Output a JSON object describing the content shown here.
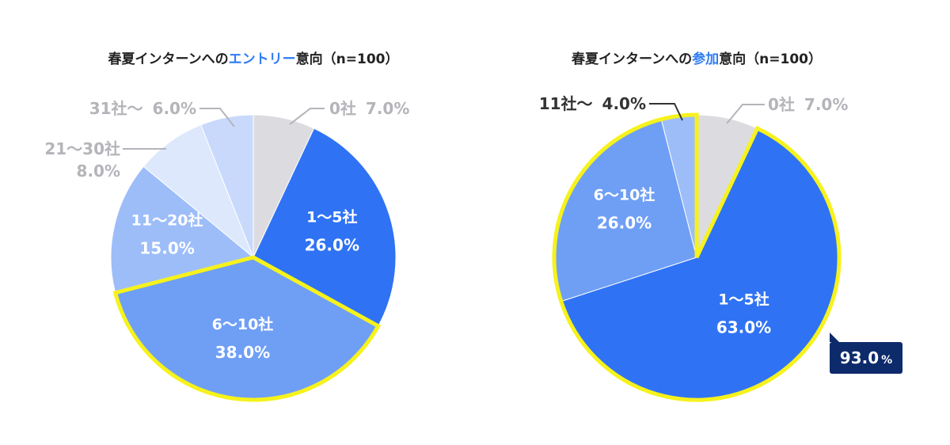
{
  "chart_data": [
    {
      "type": "pie",
      "title_parts": [
        "春夏インターンへの",
        "エントリー",
        "意向（n=100）"
      ],
      "slices": [
        {
          "name": "0社",
          "value": 7.0,
          "label": "7.0%",
          "color": "#dcdce0"
        },
        {
          "name": "1〜5社",
          "value": 26.0,
          "label": "26.0%",
          "color": "#2f73f4"
        },
        {
          "name": "6〜10社",
          "value": 38.0,
          "label": "38.0%",
          "color": "#6f9ff5"
        },
        {
          "name": "11〜20社",
          "value": 15.0,
          "label": "15.0%",
          "color": "#9dbdf9"
        },
        {
          "name": "21〜30社",
          "value": 8.0,
          "label": "8.0%",
          "color": "#dde8fd"
        },
        {
          "name": "31社〜",
          "value": 6.0,
          "label": "6.0%",
          "color": "#c8d9fc"
        }
      ],
      "highlight": [
        "6〜10社"
      ],
      "colors": {
        "highlight_outline": "#f6f21c",
        "accent": "#2f7cf3"
      }
    },
    {
      "type": "pie",
      "title_parts": [
        "春夏インターンへの",
        "参加",
        "意向（n=100）"
      ],
      "slices": [
        {
          "name": "0社",
          "value": 7.0,
          "label": "7.0%",
          "color": "#dcdce0"
        },
        {
          "name": "1〜5社",
          "value": 63.0,
          "label": "63.0%",
          "color": "#2f73f4"
        },
        {
          "name": "6〜10社",
          "value": 26.0,
          "label": "26.0%",
          "color": "#6f9ff5"
        },
        {
          "name": "11社〜",
          "value": 4.0,
          "label": "4.0%",
          "color": "#9dbdf9"
        }
      ],
      "highlight": [
        "1〜5社",
        "6〜10社",
        "11社〜"
      ],
      "callout": {
        "value": "93.0",
        "unit": "%",
        "color": "#0d2a6b"
      },
      "colors": {
        "highlight_outline": "#f6f21c",
        "accent": "#2f7cf3"
      }
    }
  ]
}
